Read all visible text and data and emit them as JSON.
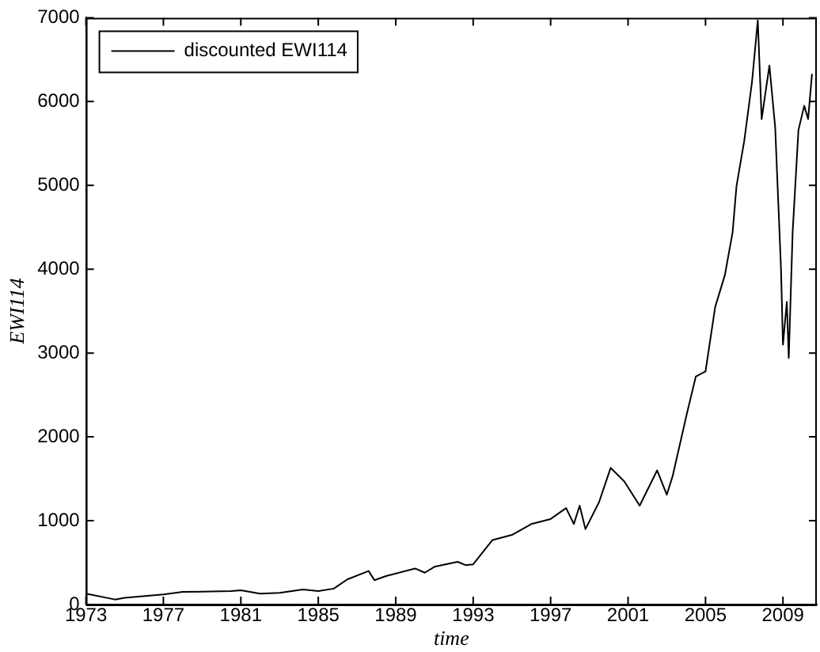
{
  "chart_data": {
    "type": "line",
    "xlabel": "time",
    "ylabel": "EWI114",
    "legend": "top left",
    "marker": "none",
    "line_style": "solid",
    "grid": false,
    "xlim": [
      1973,
      2010.75
    ],
    "xticks": [
      1973,
      1977,
      1981,
      1985,
      1989,
      1993,
      1997,
      2001,
      2005,
      2009
    ],
    "ylim": [
      0,
      7000
    ],
    "yticks": [
      0,
      1000,
      2000,
      3000,
      4000,
      5000,
      6000,
      7000
    ],
    "series": [
      {
        "name": "discounted EWI114",
        "color": "#000000",
        "x": [
          1973,
          1974.5,
          1975,
          1977,
          1978,
          1980.5,
          1981,
          1982,
          1983,
          1984.2,
          1985,
          1985.8,
          1986.5,
          1987.6,
          1987.9,
          1988.5,
          1990,
          1990.5,
          1991,
          1992.2,
          1992.6,
          1993,
          1994,
          1995,
          1996,
          1997,
          1997.8,
          1998.2,
          1998.5,
          1998.8,
          1999.5,
          2000.1,
          2000.8,
          2001.6,
          2002.5,
          2003,
          2003.3,
          2004,
          2004.5,
          2005,
          2005.5,
          2006,
          2006.4,
          2006.6,
          2007,
          2007.4,
          2007.7,
          2007.9,
          2008.3,
          2008.6,
          2008.9,
          2009,
          2009.2,
          2009.3,
          2009.5,
          2009.8,
          2010.1,
          2010.3,
          2010.5
        ],
        "values": [
          130,
          60,
          80,
          120,
          150,
          160,
          170,
          130,
          140,
          180,
          160,
          190,
          300,
          400,
          290,
          340,
          430,
          380,
          450,
          510,
          470,
          480,
          770,
          830,
          960,
          1020,
          1150,
          960,
          1180,
          900,
          1220,
          1630,
          1470,
          1180,
          1600,
          1310,
          1530,
          2240,
          2720,
          2780,
          3550,
          3930,
          4440,
          4990,
          5530,
          6230,
          6970,
          5790,
          6430,
          5690,
          4000,
          3100,
          3610,
          2940,
          4440,
          5660,
          5950,
          5790,
          6330
        ]
      }
    ]
  }
}
